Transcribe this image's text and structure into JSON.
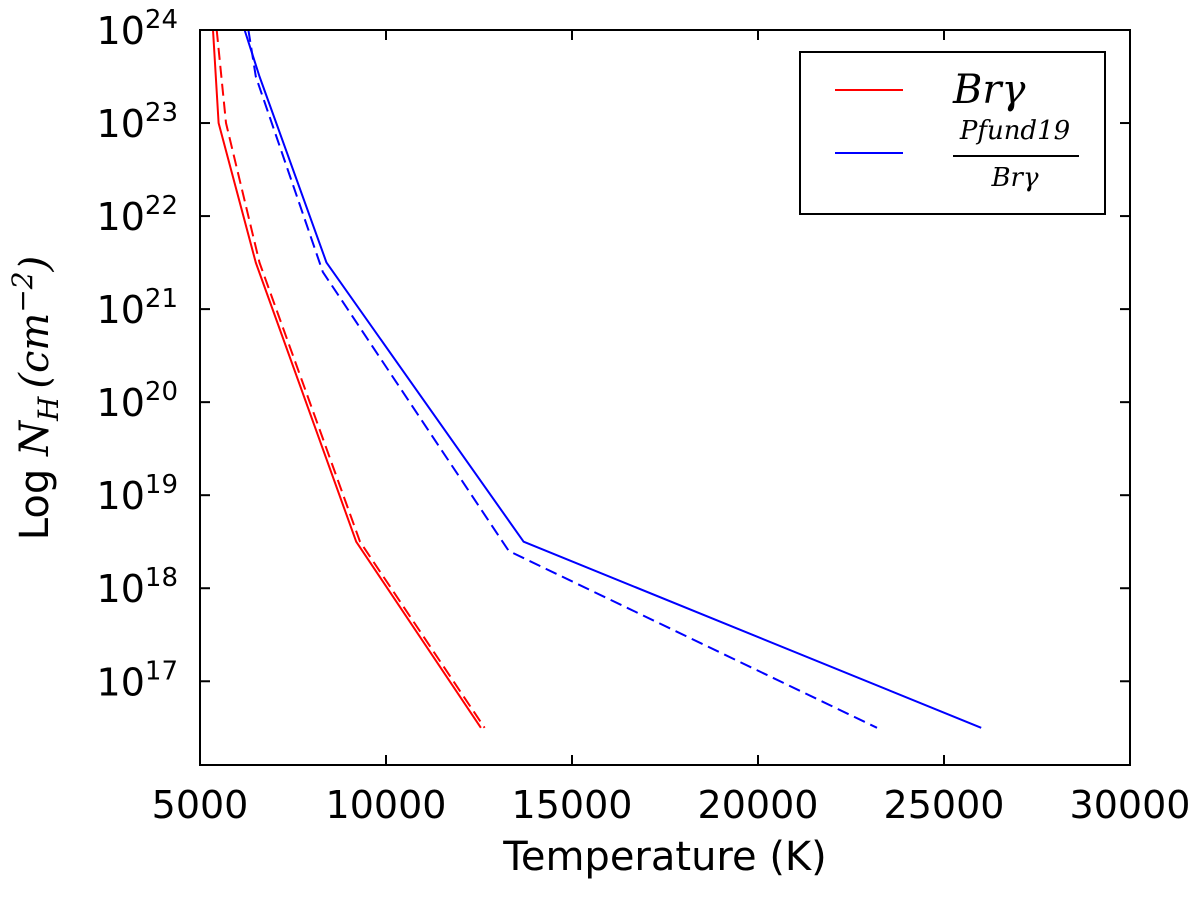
{
  "chart_data": {
    "type": "line",
    "xlabel": "Temperature (K)",
    "ylabel": {
      "prefix": "Log ",
      "var": "N",
      "sub": "H",
      "unit_open": "(",
      "unit_base": "cm",
      "unit_exp": "−2",
      "unit_close": ")"
    },
    "xlim": [
      5000,
      30000
    ],
    "ylim_log10": [
      16.1,
      24
    ],
    "x_ticks": [
      5000,
      10000,
      15000,
      20000,
      25000,
      30000
    ],
    "x_tick_labels": [
      "5000",
      "10000",
      "15000",
      "20000",
      "25000",
      "30000"
    ],
    "y_ticks_log10": [
      17,
      18,
      19,
      20,
      21,
      22,
      23,
      24
    ],
    "y_tick_labels": [
      {
        "base": "10",
        "exp": "17"
      },
      {
        "base": "10",
        "exp": "18"
      },
      {
        "base": "10",
        "exp": "19"
      },
      {
        "base": "10",
        "exp": "20"
      },
      {
        "base": "10",
        "exp": "21"
      },
      {
        "base": "10",
        "exp": "22"
      },
      {
        "base": "10",
        "exp": "23"
      },
      {
        "base": "10",
        "exp": "24"
      }
    ],
    "legend": {
      "location": "top-right",
      "entries": [
        {
          "label": "Brγ",
          "color": "#ff0000"
        },
        {
          "label_numerator": "Pfund19",
          "label_denominator": "Brγ",
          "color": "#0000ff"
        }
      ]
    },
    "series": [
      {
        "name": "Brγ (solid)",
        "color": "#ff0000",
        "dash": "solid",
        "x": [
          5350,
          5500,
          6500,
          9200,
          12550
        ],
        "log10_y": [
          24.0,
          23.0,
          21.5,
          18.5,
          16.5
        ]
      },
      {
        "name": "Brγ (dashed)",
        "color": "#ff0000",
        "dash": "dashed",
        "x": [
          5450,
          5700,
          6600,
          9300,
          12650
        ],
        "log10_y": [
          24.0,
          23.0,
          21.5,
          18.5,
          16.5
        ]
      },
      {
        "name": "Pfund19/Brγ (solid)",
        "color": "#0000ff",
        "dash": "solid",
        "x": [
          6200,
          6600,
          8400,
          13700,
          26000
        ],
        "log10_y": [
          24.0,
          23.5,
          21.5,
          18.5,
          16.5
        ]
      },
      {
        "name": "Pfund19/Brγ (dashed)",
        "color": "#0000ff",
        "dash": "dashed",
        "x": [
          6300,
          6500,
          8300,
          13300,
          23200
        ],
        "log10_y": [
          24.0,
          23.5,
          21.4,
          18.4,
          16.5
        ]
      }
    ]
  }
}
